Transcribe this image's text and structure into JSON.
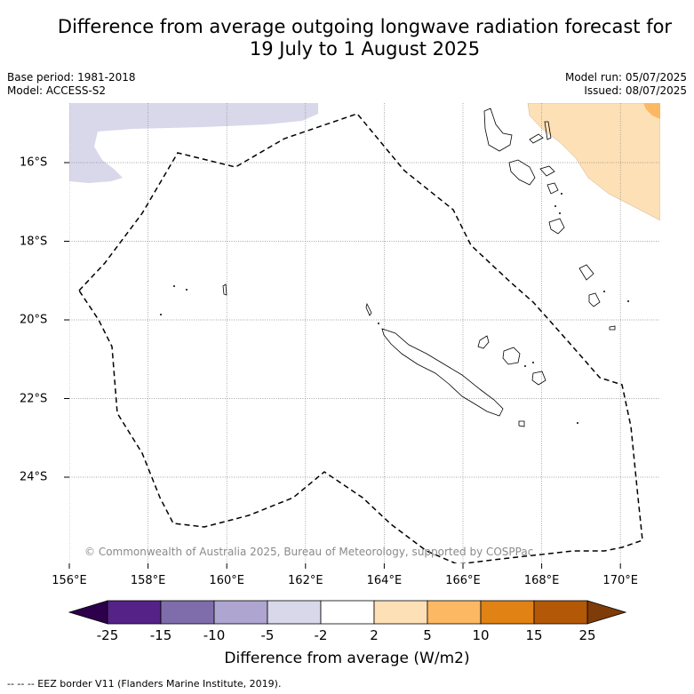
{
  "title_line1": "Difference from average outgoing longwave radiation forecast for",
  "title_line2": "19 July to 1 August 2025",
  "base_period": "Base period: 1981-2018",
  "model": "Model: ACCESS-S2",
  "model_run": "Model run: 05/07/2025",
  "issued": "Issued: 08/07/2025",
  "x_ticks": [
    "156°E",
    "158°E",
    "160°E",
    "162°E",
    "164°E",
    "166°E",
    "168°E",
    "170°E"
  ],
  "y_ticks": [
    "16°S",
    "18°S",
    "20°S",
    "22°S",
    "24°S"
  ],
  "copyright": "© Commonwealth of Australia 2025, Bureau of Meteorology, supported by COSPPac",
  "colorbar": {
    "labels": [
      "-25",
      "-15",
      "-10",
      "-5",
      "-2",
      "2",
      "5",
      "10",
      "15",
      "25"
    ],
    "colors": [
      "#552288",
      "#7e6daa",
      "#afa5d1",
      "#d8d8ea",
      "#ffffff",
      "#fee0b6",
      "#fdb863",
      "#e08214",
      "#b35806"
    ],
    "under_color": "#2d004b",
    "over_color": "#7f3b08",
    "title": "Difference from average (W/m2)"
  },
  "footnote": "-- -- -- EEZ border V11 (Flanders Marine Institute, 2019)."
}
